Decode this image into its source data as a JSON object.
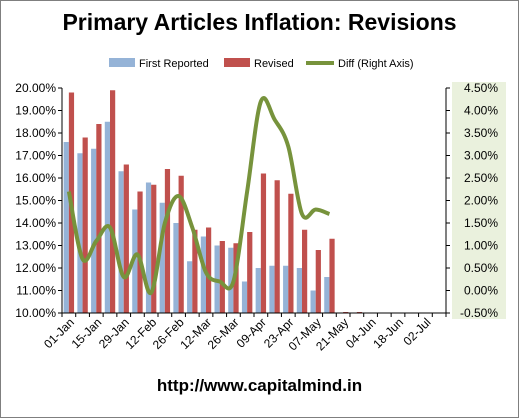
{
  "chart_data": {
    "type": "bar",
    "title": "Primary Articles Inflation: Revisions",
    "footer": "http://www.capitalmind.in",
    "y_left": {
      "range": [
        10.0,
        20.0
      ],
      "ticks": [
        "20.00%",
        "19.00%",
        "18.00%",
        "17.00%",
        "16.00%",
        "15.00%",
        "14.00%",
        "13.00%",
        "12.00%",
        "11.00%",
        "10.00%"
      ]
    },
    "y_right": {
      "range": [
        -0.5,
        4.5
      ],
      "ticks": [
        "4.50%",
        "4.00%",
        "3.50%",
        "3.00%",
        "2.50%",
        "2.00%",
        "1.50%",
        "1.00%",
        "0.50%",
        "0.00%",
        "-0.50%"
      ]
    },
    "x_tick_labels": [
      "01-Jan",
      "15-Jan",
      "29-Jan",
      "12-Feb",
      "26-Feb",
      "12-Mar",
      "26-Mar",
      "09-Apr",
      "23-Apr",
      "07-May",
      "21-May",
      "04-Jun",
      "18-Jun",
      "02-Jul"
    ],
    "categories_count": 28,
    "series": [
      {
        "name": "First Reported",
        "axis": "left",
        "color": "#95b3d7",
        "values": [
          17.6,
          17.1,
          17.3,
          18.5,
          16.3,
          14.6,
          15.8,
          14.9,
          14.0,
          12.3,
          13.4,
          13.0,
          12.9,
          11.4,
          12.0,
          12.1,
          12.1,
          12.0,
          11.0,
          11.6,
          null,
          null,
          null,
          null,
          null,
          null,
          null,
          null
        ]
      },
      {
        "name": "Revised",
        "axis": "left",
        "color": "#c0504d",
        "values": [
          19.8,
          17.8,
          18.4,
          19.9,
          16.6,
          15.4,
          15.7,
          16.4,
          16.1,
          13.7,
          13.8,
          13.2,
          13.1,
          13.6,
          16.2,
          15.9,
          15.3,
          13.7,
          12.8,
          13.3,
          10.0,
          10.0,
          null,
          null,
          null,
          null,
          null,
          null
        ]
      },
      {
        "name": "Diff (Right Axis)",
        "axis": "right",
        "color": "#77933c",
        "type": "line",
        "values": [
          2.2,
          0.7,
          1.1,
          1.4,
          0.3,
          0.8,
          -0.05,
          1.5,
          2.1,
          1.4,
          0.4,
          0.2,
          0.2,
          2.2,
          4.2,
          3.8,
          3.2,
          1.7,
          1.8,
          1.7
        ]
      }
    ],
    "legend": [
      "First Reported",
      "Revised",
      "Diff (Right Axis)"
    ]
  }
}
